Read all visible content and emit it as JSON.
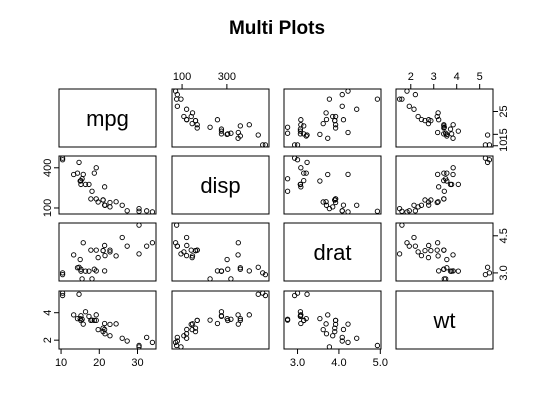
{
  "chart_data": {
    "type": "scatter",
    "title": "Multi Plots",
    "variables": [
      "mpg",
      "disp",
      "drat",
      "wt"
    ],
    "data": {
      "mpg": [
        21.0,
        21.0,
        22.8,
        21.4,
        18.7,
        18.1,
        14.3,
        24.4,
        22.8,
        19.2,
        17.8,
        16.4,
        17.3,
        15.2,
        10.4,
        10.4,
        14.7,
        32.4,
        30.4,
        33.9,
        21.5,
        15.5,
        15.2,
        13.3,
        19.2,
        27.3,
        26.0,
        30.4,
        15.8,
        19.7,
        15.0,
        21.4
      ],
      "disp": [
        160.0,
        160.0,
        108.0,
        258.0,
        360.0,
        225.0,
        360.0,
        146.7,
        140.8,
        167.6,
        167.6,
        275.8,
        275.8,
        275.8,
        472.0,
        460.0,
        440.0,
        78.7,
        75.7,
        71.1,
        120.1,
        318.0,
        304.0,
        350.0,
        400.0,
        79.0,
        120.3,
        95.1,
        351.0,
        145.0,
        301.0,
        121.0
      ],
      "drat": [
        3.9,
        3.9,
        3.85,
        3.08,
        3.15,
        2.76,
        3.21,
        3.69,
        3.92,
        3.92,
        3.92,
        3.07,
        3.07,
        3.07,
        2.93,
        3.0,
        3.23,
        4.08,
        4.93,
        4.22,
        3.7,
        2.76,
        3.15,
        3.73,
        3.08,
        4.08,
        4.43,
        3.77,
        4.22,
        3.62,
        3.54,
        4.11
      ],
      "wt": [
        2.62,
        2.875,
        2.32,
        3.215,
        3.44,
        3.46,
        3.57,
        3.19,
        3.15,
        3.44,
        3.44,
        4.07,
        3.73,
        3.78,
        5.25,
        5.424,
        5.345,
        2.2,
        1.615,
        1.835,
        2.465,
        3.52,
        3.435,
        3.84,
        3.845,
        1.935,
        2.14,
        1.513,
        3.17,
        2.77,
        3.57,
        2.78
      ]
    },
    "ranges": {
      "mpg": [
        10.4,
        33.9
      ],
      "disp": [
        71.1,
        472.0
      ],
      "drat": [
        2.76,
        4.93
      ],
      "wt": [
        1.513,
        5.424
      ]
    },
    "axis_ticks": {
      "mpg": [
        10,
        20,
        30
      ],
      "disp": [
        100,
        400
      ],
      "drat": [
        3.0,
        4.5
      ],
      "wt": [
        2,
        4
      ]
    },
    "tick_labels": {
      "top": {
        "disp": [
          "100",
          "300"
        ],
        "wt": [
          "2",
          "3",
          "4",
          "5"
        ]
      },
      "right": {
        "mpg": [
          "10",
          "15",
          "25"
        ],
        "drat": [
          "3.0",
          "4.5"
        ]
      },
      "left": {
        "disp": [
          "100",
          "400"
        ],
        "wt": [
          "2",
          "4"
        ]
      },
      "bottom": {
        "mpg": [
          "10",
          "20",
          "30"
        ],
        "drat": [
          "3.0",
          "4.0",
          "5.0"
        ]
      }
    },
    "grid": false,
    "legend": "none"
  }
}
